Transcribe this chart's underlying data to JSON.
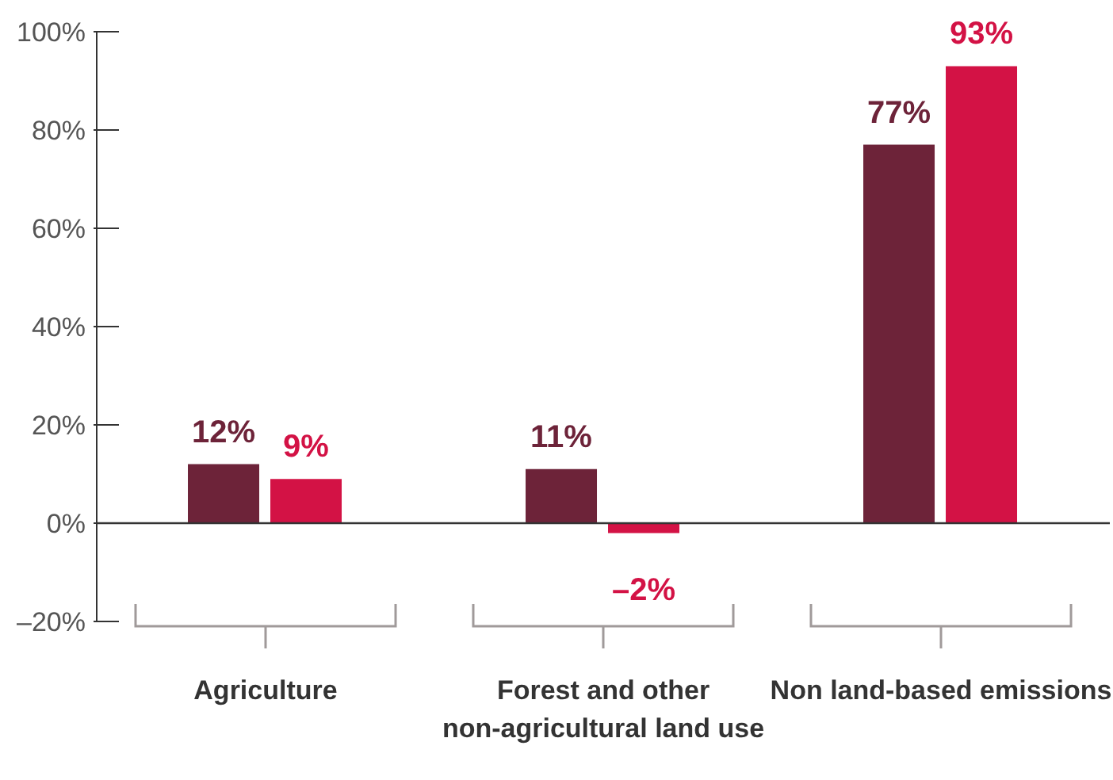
{
  "chart_data": {
    "type": "bar",
    "categories": [
      "Agriculture",
      "Forest and other non-agricultural land use",
      "Non land-based emissions"
    ],
    "series": [
      {
        "color": "#6d2339",
        "values": [
          12,
          11,
          77
        ],
        "value_labels": [
          "12%",
          "11%",
          "77%"
        ]
      },
      {
        "color": "#d31245",
        "values": [
          9,
          -2,
          93
        ],
        "value_labels": [
          "9%",
          "–2%",
          "93%"
        ]
      }
    ],
    "ylim": [
      -20,
      100
    ],
    "yticks": [
      {
        "value": -20,
        "label": "–20%"
      },
      {
        "value": 0,
        "label": "0%"
      },
      {
        "value": 20,
        "label": "20%"
      },
      {
        "value": 40,
        "label": "40%"
      },
      {
        "value": 60,
        "label": "60%"
      },
      {
        "value": 80,
        "label": "80%"
      },
      {
        "value": 100,
        "label": "100%"
      }
    ],
    "ref_lines": [
      {
        "axis": "y",
        "value": 0,
        "color": "#333333"
      }
    ],
    "grid": false,
    "legend": false
  }
}
